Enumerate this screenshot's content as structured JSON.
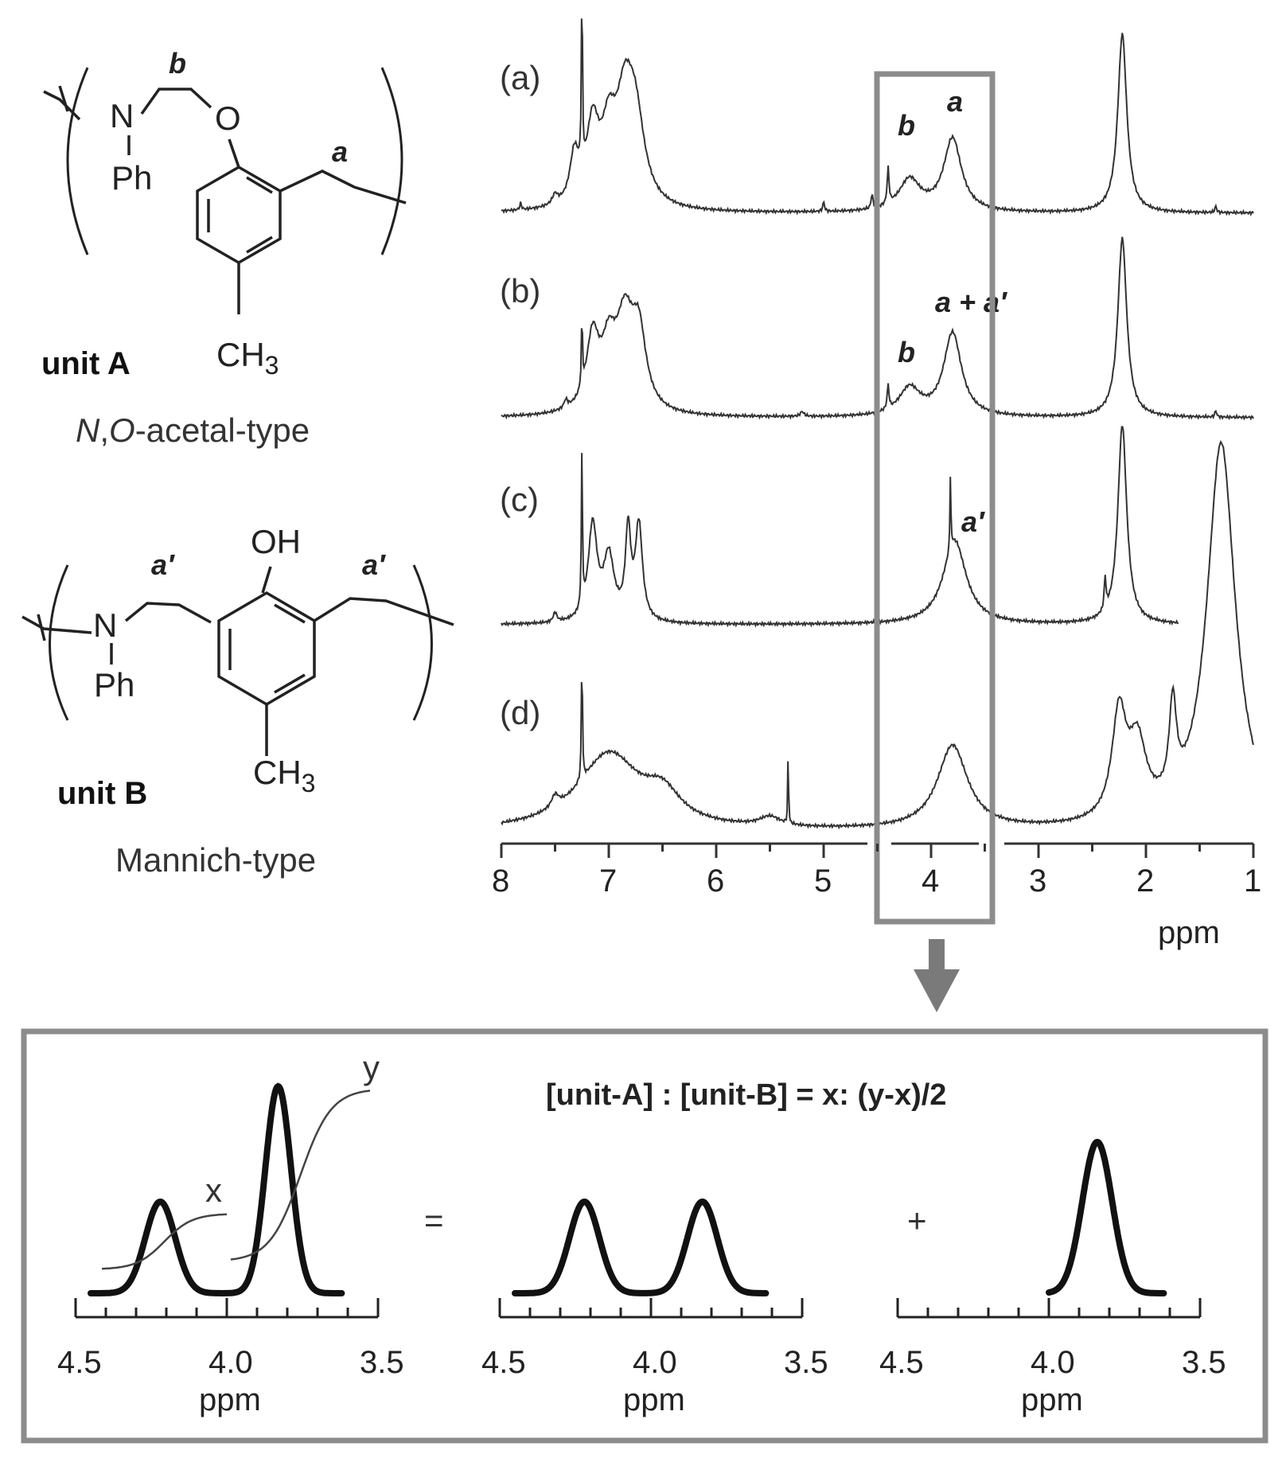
{
  "structures": {
    "unit_a": {
      "label": "unit A",
      "type_prefix_italic_n": "N",
      "type_comma": ",",
      "type_prefix_italic_o": "O",
      "type_suffix": "-acetal-type",
      "atom_n": "N",
      "atom_o": "O",
      "ph": "Ph",
      "ch3": "CH",
      "ch3_sub": "3",
      "label_b": "b",
      "label_a": "a"
    },
    "unit_b": {
      "label": "unit B",
      "type": "Mannich-type",
      "atom_n": "N",
      "oh": "OH",
      "ph": "Ph",
      "ch3": "CH",
      "ch3_sub": "3",
      "label_a_prime_left": "a′",
      "label_a_prime_right": "a′"
    }
  },
  "spectra": {
    "traces": [
      {
        "label": "(a)",
        "annotations": [
          "b",
          "a"
        ]
      },
      {
        "label": "(b)",
        "annotations": [
          "b",
          "a + a′"
        ]
      },
      {
        "label": "(c)",
        "annotations": [
          "a′"
        ]
      },
      {
        "label": "(d)",
        "annotations": []
      }
    ],
    "x_ticks": [
      "8",
      "7",
      "6",
      "5",
      "4",
      "3",
      "2",
      "1"
    ],
    "x_unit": "ppm"
  },
  "chart_data": {
    "type": "line",
    "x_axis": {
      "unit": "ppm",
      "range": [
        8,
        1
      ],
      "reversed": true,
      "ticks": [
        8,
        7,
        6,
        5,
        4,
        3,
        2,
        1
      ]
    },
    "series": [
      {
        "name": "(a)",
        "peaks_ppm": [
          7.25,
          6.8,
          4.2,
          3.8,
          2.2
        ]
      },
      {
        "name": "(b)",
        "peaks_ppm": [
          7.25,
          6.8,
          4.2,
          3.8,
          2.2
        ]
      },
      {
        "name": "(c)",
        "peaks_ppm": [
          7.2,
          6.8,
          3.8,
          2.2,
          1.3
        ]
      },
      {
        "name": "(d)",
        "peaks_ppm": [
          7.25,
          6.9,
          5.3,
          3.8,
          2.2,
          1.75,
          1.3
        ]
      }
    ],
    "highlight_range_ppm": [
      4.5,
      3.4
    ]
  },
  "inset": {
    "formula": "[unit-A] : [unit-B] = x: (y-x)/2",
    "equals": "=",
    "plus": "+",
    "label_x": "x",
    "label_y": "y",
    "ticks": [
      "4.5",
      "4.0",
      "3.5"
    ],
    "unit": "ppm"
  }
}
